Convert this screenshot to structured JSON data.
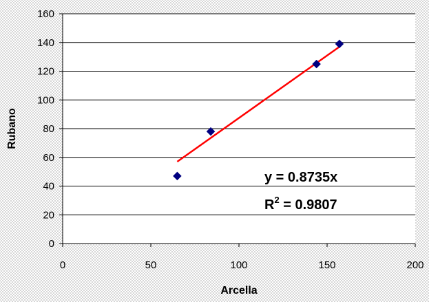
{
  "chart_data": {
    "type": "scatter",
    "title": "",
    "xlabel": "Arcella",
    "ylabel": "Rubano",
    "xlim": [
      0,
      200
    ],
    "ylim": [
      0,
      160
    ],
    "xticks": [
      0,
      50,
      100,
      150,
      200
    ],
    "yticks": [
      0,
      20,
      40,
      60,
      80,
      100,
      120,
      140,
      160
    ],
    "grid": "horizontal",
    "legend": "none",
    "series": [
      {
        "x": [
          65,
          84,
          144,
          157
        ],
        "y": [
          47,
          78,
          125,
          139
        ],
        "marker": "diamond",
        "color": "#000080"
      }
    ],
    "trendline": {
      "type": "linear",
      "x": [
        65,
        157
      ],
      "y": [
        57,
        137
      ],
      "color": "#ff0000"
    },
    "annotations": {
      "equation": "y = 0.8735x",
      "r2_prefix": "R",
      "r2_exp": "2",
      "r2_suffix": " = 0.9807"
    }
  }
}
